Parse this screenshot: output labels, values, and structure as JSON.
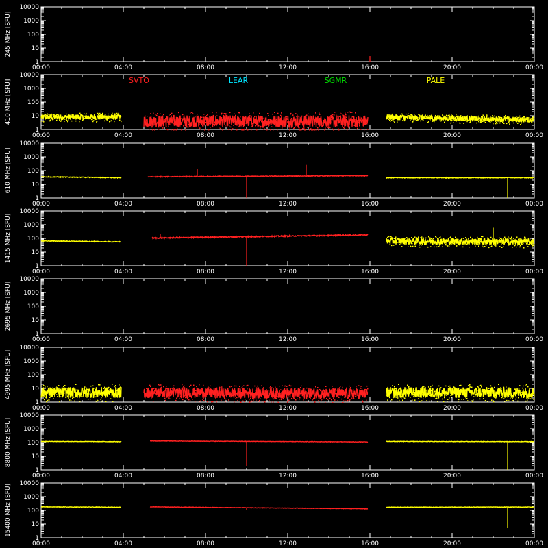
{
  "chart_data": {
    "type": "scatter",
    "x_unit": "hours UTC",
    "xlim": [
      0,
      24
    ],
    "ylim": [
      1,
      10000
    ],
    "y_scale": "log",
    "xticks": [
      "00:00",
      "04:00",
      "08:00",
      "12:00",
      "16:00",
      "20:00",
      "00:00"
    ],
    "yticks": [
      "1",
      "10",
      "100",
      "1000",
      "10000"
    ],
    "legend": [
      {
        "name": "SVTO",
        "color": "#ff2020"
      },
      {
        "name": "LEAR",
        "color": "#00e5ff"
      },
      {
        "name": "SGMR",
        "color": "#00e000"
      },
      {
        "name": "PALE",
        "color": "#ffff00"
      }
    ],
    "panels": [
      {
        "ylabel": "245 MHz [SFU]",
        "segments": [],
        "spikes": [
          {
            "x": 16.0,
            "y": 2.5,
            "color": "#ff2020"
          }
        ]
      },
      {
        "ylabel": "410 MHz [SFU]",
        "segments": [
          {
            "color": "#ffff00",
            "x0": 0.0,
            "x1": 3.9,
            "y0": 8,
            "y1": 8,
            "noise": 0.4
          },
          {
            "color": "#ff2020",
            "x0": 5.0,
            "x1": 15.9,
            "y0": 4,
            "y1": 4,
            "noise": 0.9
          },
          {
            "color": "#ffff00",
            "x0": 16.8,
            "x1": 24.0,
            "y0": 8,
            "y1": 5,
            "noise": 0.4
          }
        ],
        "spikes": []
      },
      {
        "ylabel": "610 MHz [SFU]",
        "segments": [
          {
            "color": "#ffff00",
            "x0": 0.0,
            "x1": 3.9,
            "y0": 35,
            "y1": 30,
            "noise": 0.05
          },
          {
            "color": "#ff2020",
            "x0": 5.2,
            "x1": 15.9,
            "y0": 35,
            "y1": 42,
            "noise": 0.05
          },
          {
            "color": "#ffff00",
            "x0": 16.8,
            "x1": 24.0,
            "y0": 30,
            "y1": 30,
            "noise": 0.05
          }
        ],
        "spikes": [
          {
            "x": 7.6,
            "y": 130,
            "color": "#ff2020"
          },
          {
            "x": 12.9,
            "y": 260,
            "color": "#ff2020"
          },
          {
            "x": 10.0,
            "y": 1,
            "color": "#ff2020"
          },
          {
            "x": 22.7,
            "y": 1,
            "color": "#ffff00"
          }
        ]
      },
      {
        "ylabel": "1415 MHz [SFU]",
        "segments": [
          {
            "color": "#ffff00",
            "x0": 0.0,
            "x1": 3.9,
            "y0": 65,
            "y1": 55,
            "noise": 0.05
          },
          {
            "color": "#ff2020",
            "x0": 5.4,
            "x1": 15.9,
            "y0": 105,
            "y1": 180,
            "noise": 0.08
          },
          {
            "color": "#ffff00",
            "x0": 16.8,
            "x1": 24.0,
            "y0": 65,
            "y1": 55,
            "noise": 0.5
          }
        ],
        "spikes": [
          {
            "x": 5.8,
            "y": 220,
            "color": "#ff2020"
          },
          {
            "x": 22.0,
            "y": 600,
            "color": "#ffff00"
          },
          {
            "x": 10.0,
            "y": 1,
            "color": "#ff2020"
          }
        ]
      },
      {
        "ylabel": "2695 MHz [SFU]",
        "segments": [],
        "spikes": []
      },
      {
        "ylabel": "4995 MHz [SFU]",
        "segments": [
          {
            "color": "#ffff00",
            "x0": 0.0,
            "x1": 3.9,
            "y0": 5,
            "y1": 5,
            "noise": 0.8
          },
          {
            "color": "#ff2020",
            "x0": 5.0,
            "x1": 15.9,
            "y0": 5,
            "y1": 4,
            "noise": 0.8
          },
          {
            "color": "#ffff00",
            "x0": 16.8,
            "x1": 24.0,
            "y0": 5,
            "y1": 5,
            "noise": 0.8
          }
        ],
        "spikes": []
      },
      {
        "ylabel": "8800 MHz [SFU]",
        "segments": [
          {
            "color": "#ffff00",
            "x0": 0.0,
            "x1": 3.9,
            "y0": 120,
            "y1": 115,
            "noise": 0.03
          },
          {
            "color": "#ff2020",
            "x0": 5.3,
            "x1": 15.9,
            "y0": 130,
            "y1": 110,
            "noise": 0.03
          },
          {
            "color": "#ffff00",
            "x0": 16.8,
            "x1": 24.0,
            "y0": 120,
            "y1": 115,
            "noise": 0.03
          }
        ],
        "spikes": [
          {
            "x": 10.0,
            "y": 2,
            "color": "#ff2020"
          },
          {
            "x": 22.7,
            "y": 1,
            "color": "#ffff00"
          }
        ]
      },
      {
        "ylabel": "15400 MHz [SFU]",
        "segments": [
          {
            "color": "#ffff00",
            "x0": 0.0,
            "x1": 3.9,
            "y0": 180,
            "y1": 170,
            "noise": 0.03
          },
          {
            "color": "#ff2020",
            "x0": 5.3,
            "x1": 15.9,
            "y0": 180,
            "y1": 130,
            "noise": 0.03
          },
          {
            "color": "#ffff00",
            "x0": 16.8,
            "x1": 24.0,
            "y0": 170,
            "y1": 175,
            "noise": 0.03
          }
        ],
        "spikes": [
          {
            "x": 10.0,
            "y": 100,
            "color": "#ff2020"
          },
          {
            "x": 22.7,
            "y": 5,
            "color": "#ffff00"
          }
        ]
      }
    ]
  }
}
